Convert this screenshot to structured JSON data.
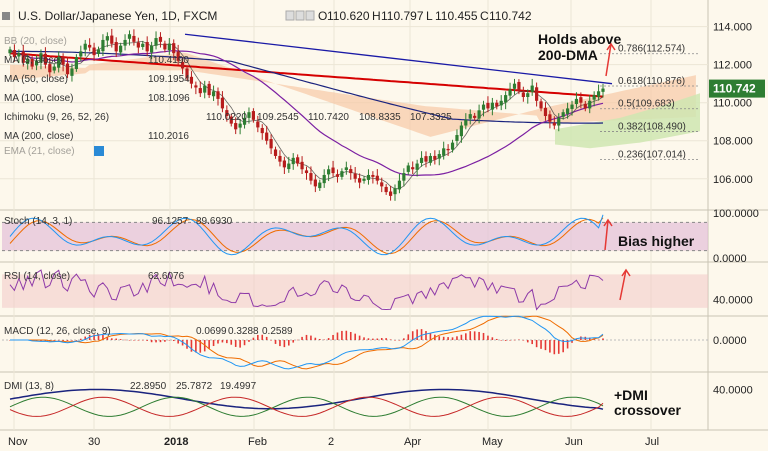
{
  "header": {
    "title": "U.S. Dollar/Japanese Yen, 1D, FXCM",
    "ohlc": [
      {
        "key": "O",
        "value": "110.620"
      },
      {
        "key": "H",
        "value": "110.797"
      },
      {
        "key": "L",
        "value": "110.455"
      },
      {
        "key": "C",
        "value": "110.742"
      }
    ]
  },
  "main_indicators": [
    {
      "label": "BB (20, close)",
      "values": [],
      "visible": false
    },
    {
      "label": "MA (5, close)",
      "values": [
        "110.4190"
      ],
      "visible": true
    },
    {
      "label": "MA (50, close)",
      "values": [
        "109.1954"
      ],
      "visible": true
    },
    {
      "label": "MA (100, close)",
      "values": [
        "108.1096"
      ],
      "visible": true
    },
    {
      "label": "Ichimoku (9, 26, 52, 26)",
      "values": [
        "110.0220",
        "109.2545",
        "110.7420",
        "108.8335",
        "107.3325"
      ],
      "visible": true
    },
    {
      "label": "MA (200, close)",
      "values": [
        "110.2016"
      ],
      "visible": true
    },
    {
      "label": "EMA (21, close)",
      "values": [],
      "visible": false
    }
  ],
  "price_badge": "110.742",
  "annotations": {
    "holds_1": "Holds above",
    "holds_2": "200-DMA",
    "bias": "Bias higher",
    "dmi_1": "+DMI",
    "dmi_2": "crossover"
  },
  "panes": {
    "stoch": {
      "label": "Stoch (14, 3, 1)",
      "values": [
        "96.1257",
        "89.6930"
      ]
    },
    "rsi": {
      "label": "RSI (14, close)",
      "values": [
        "62.6076"
      ]
    },
    "macd": {
      "label": "MACD (12, 26, close, 9)",
      "values": [
        "0.0699",
        "0.3288",
        "0.2589"
      ]
    },
    "dmi": {
      "label": "DMI (13, 8)",
      "values": [
        "22.8950",
        "25.7872",
        "19.4997"
      ]
    }
  },
  "colors": {
    "candle_up": "#2e7d32",
    "candle_down": "#b71c1c",
    "ma5": "#2a2a2a",
    "ma50": "#7b1fa2",
    "ma100": "#1a237e",
    "ma200": "#d50000",
    "trendline": "#1a1aa6",
    "cloud_bear": "#f6c9a6",
    "cloud_bull": "#cfe6b2",
    "stoch_k": "#2196f3",
    "stoch_d": "#ef6c00",
    "rsi": "#8e3aa8",
    "macd": "#2196f3",
    "signal": "#ef6c00",
    "hist": "#e53935",
    "dmi_plus": "#2e7d32",
    "dmi_minus": "#c62828",
    "adx": "#1a237e",
    "arrow": "#e53935"
  },
  "chart_data": {
    "type": "candlestick",
    "title": "U.S. Dollar/Japanese Yen, 1D, FXCM",
    "x_tick_labels": [
      "Nov",
      "30",
      "2018",
      "Feb",
      "2",
      "Apr",
      "May",
      "Jun",
      "Jul"
    ],
    "price_axis": {
      "ticks": [
        "114.000",
        "112.000",
        "110.000",
        "108.000",
        "106.000"
      ],
      "range": [
        104.2,
        115.4
      ]
    },
    "fib_levels": [
      {
        "label": "0.786(112.574)",
        "value": 112.574
      },
      {
        "label": "0.618(110.876)",
        "value": 110.876
      },
      {
        "label": "0.5(109.683)",
        "value": 109.683
      },
      {
        "label": "0.382(108.490)",
        "value": 108.49
      },
      {
        "label": "0.236(107.014)",
        "value": 107.014
      }
    ],
    "close_series": [
      112.8,
      112.4,
      112.6,
      112.1,
      112.3,
      111.9,
      112.2,
      112.6,
      112.0,
      111.6,
      111.9,
      112.4,
      112.0,
      111.5,
      111.8,
      112.4,
      112.7,
      113.1,
      112.9,
      112.5,
      112.8,
      113.3,
      113.5,
      113.1,
      112.7,
      113.0,
      113.3,
      113.6,
      113.2,
      112.9,
      113.1,
      112.7,
      113.0,
      113.4,
      113.2,
      112.8,
      113.1,
      112.6,
      112.2,
      111.8,
      111.3,
      111.0,
      110.8,
      110.5,
      110.9,
      110.4,
      110.6,
      110.2,
      109.7,
      109.3,
      108.9,
      108.6,
      108.9,
      109.2,
      109.5,
      109.1,
      108.7,
      108.4,
      108.0,
      107.6,
      107.2,
      106.9,
      106.6,
      106.8,
      107.1,
      106.8,
      106.5,
      106.3,
      105.9,
      105.6,
      105.8,
      106.2,
      106.5,
      106.3,
      106.1,
      106.4,
      106.6,
      106.3,
      106.0,
      105.8,
      106.0,
      106.2,
      106.1,
      105.9,
      105.6,
      105.3,
      105.1,
      105.5,
      105.9,
      106.3,
      106.7,
      106.5,
      106.8,
      107.1,
      106.9,
      107.2,
      107.0,
      107.3,
      107.6,
      107.5,
      107.9,
      108.3,
      108.8,
      109.1,
      109.4,
      109.2,
      109.6,
      109.9,
      109.7,
      110.0,
      109.8,
      110.1,
      110.4,
      110.7,
      111.0,
      110.6,
      110.3,
      110.5,
      110.9,
      110.1,
      109.7,
      109.3,
      109.0,
      108.8,
      109.2,
      109.5,
      109.7,
      109.9,
      110.2,
      110.0,
      109.7,
      110.1,
      110.4,
      110.6,
      110.742
    ],
    "ma": [
      {
        "name": "MA (5, close)",
        "value": 110.419
      },
      {
        "name": "MA (50, close)",
        "value": 109.1954
      },
      {
        "name": "MA (100, close)",
        "value": 108.1096
      },
      {
        "name": "MA (200, close)",
        "value": 110.2016
      }
    ],
    "stochastic": {
      "range": [
        0,
        100
      ],
      "ticks": [
        "100.0000",
        "0.0000"
      ],
      "k": 96.1257,
      "d": 89.693
    },
    "rsi": {
      "ticks": [
        "40.0000"
      ],
      "value": 62.6076
    },
    "macd": {
      "ticks": [
        "0.0000"
      ],
      "histogram": 0.0699,
      "macd": 0.3288,
      "signal": 0.2589
    },
    "dmi": {
      "ticks": [
        "40.0000"
      ],
      "plus_di": 22.895,
      "minus_di": 25.7872,
      "adx": 19.4997
    }
  }
}
